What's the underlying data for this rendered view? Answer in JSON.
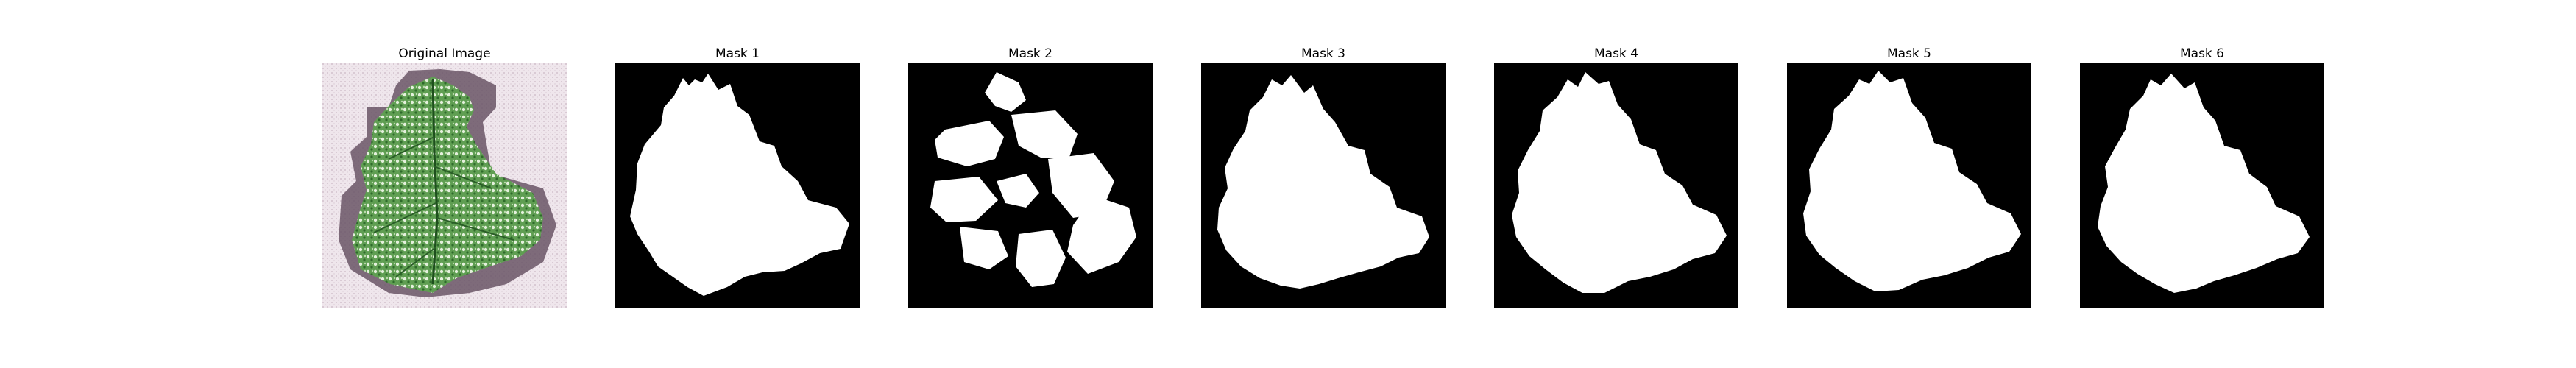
{
  "figure": {
    "panels": [
      {
        "title": "Original Image",
        "kind": "photo"
      },
      {
        "title": "Mask 1",
        "kind": "mask"
      },
      {
        "title": "Mask 2",
        "kind": "mask"
      },
      {
        "title": "Mask 3",
        "kind": "mask"
      },
      {
        "title": "Mask 4",
        "kind": "mask"
      },
      {
        "title": "Mask 5",
        "kind": "mask"
      },
      {
        "title": "Mask 6",
        "kind": "mask"
      }
    ]
  },
  "colors": {
    "mask_background": "#000000",
    "mask_foreground": "#ffffff",
    "photo_background": "#e9dde6",
    "leaf_base": "#3f8a3a",
    "leaf_light": "#d9ead0",
    "leaf_dark": "#1e4f1d",
    "leaf_shadow": "#6a5566"
  }
}
